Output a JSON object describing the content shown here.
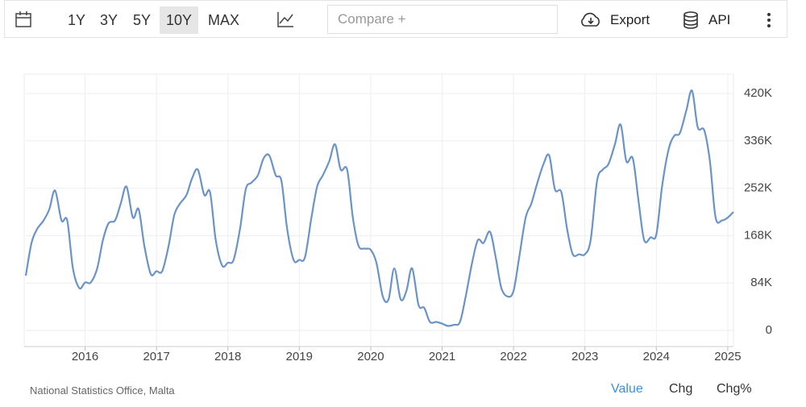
{
  "toolbar": {
    "ranges": [
      "1Y",
      "3Y",
      "5Y",
      "10Y",
      "MAX"
    ],
    "compare": "Compare +",
    "export": "Export",
    "api": "API"
  },
  "chart_data": {
    "type": "line",
    "x": [
      2015.17,
      2015.25,
      2015.33,
      2015.42,
      2015.5,
      2015.58,
      2015.67,
      2015.75,
      2015.83,
      2015.92,
      2016.0,
      2016.08,
      2016.17,
      2016.25,
      2016.33,
      2016.42,
      2016.5,
      2016.58,
      2016.67,
      2016.75,
      2016.83,
      2016.92,
      2017.0,
      2017.08,
      2017.17,
      2017.25,
      2017.33,
      2017.42,
      2017.5,
      2017.58,
      2017.67,
      2017.75,
      2017.83,
      2017.92,
      2018.0,
      2018.08,
      2018.17,
      2018.25,
      2018.33,
      2018.42,
      2018.5,
      2018.58,
      2018.67,
      2018.75,
      2018.83,
      2018.92,
      2019.0,
      2019.08,
      2019.17,
      2019.25,
      2019.33,
      2019.42,
      2019.5,
      2019.58,
      2019.67,
      2019.75,
      2019.83,
      2019.92,
      2020.0,
      2020.08,
      2020.17,
      2020.25,
      2020.33,
      2020.42,
      2020.5,
      2020.58,
      2020.67,
      2020.75,
      2020.83,
      2020.92,
      2021.0,
      2021.08,
      2021.17,
      2021.25,
      2021.33,
      2021.42,
      2021.5,
      2021.58,
      2021.67,
      2021.75,
      2021.83,
      2021.92,
      2022.0,
      2022.08,
      2022.17,
      2022.25,
      2022.33,
      2022.42,
      2022.5,
      2022.58,
      2022.67,
      2022.75,
      2022.83,
      2022.92,
      2023.0,
      2023.08,
      2023.17,
      2023.25,
      2023.33,
      2023.42,
      2023.5,
      2023.58,
      2023.67,
      2023.75,
      2023.83,
      2023.92,
      2024.0,
      2024.08,
      2024.17,
      2024.25,
      2024.33,
      2024.42,
      2024.5,
      2024.58,
      2024.67,
      2024.75,
      2024.83,
      2024.92,
      2025.0,
      2025.08
    ],
    "series": [
      {
        "color": "#6a93c8",
        "values": [
          97000,
          155000,
          180000,
          195000,
          215000,
          248000,
          195000,
          195000,
          110000,
          75000,
          85000,
          85000,
          110000,
          160000,
          190000,
          195000,
          225000,
          255000,
          200000,
          215000,
          150000,
          100000,
          105000,
          105000,
          150000,
          205000,
          225000,
          240000,
          270000,
          285000,
          240000,
          245000,
          160000,
          115000,
          120000,
          125000,
          180000,
          250000,
          262000,
          275000,
          305000,
          310000,
          275000,
          265000,
          180000,
          125000,
          125000,
          130000,
          200000,
          255000,
          275000,
          300000,
          330000,
          285000,
          285000,
          200000,
          150000,
          145000,
          143000,
          120000,
          60000,
          55000,
          110000,
          55000,
          70000,
          110000,
          45000,
          40000,
          15000,
          15000,
          12000,
          8000,
          10000,
          15000,
          60000,
          120000,
          160000,
          155000,
          175000,
          130000,
          75000,
          60000,
          70000,
          130000,
          200000,
          225000,
          260000,
          295000,
          310000,
          250000,
          245000,
          180000,
          135000,
          135000,
          135000,
          160000,
          265000,
          285000,
          295000,
          330000,
          365000,
          300000,
          305000,
          230000,
          160000,
          165000,
          170000,
          255000,
          320000,
          345000,
          350000,
          390000,
          425000,
          360000,
          355000,
          300000,
          200000,
          195000,
          200000,
          210000
        ]
      }
    ],
    "xlim": [
      2015.17,
      2025.08
    ],
    "xticks": [
      2016,
      2017,
      2018,
      2019,
      2020,
      2021,
      2022,
      2023,
      2024,
      2025
    ],
    "ylim": [
      -28600,
      454300
    ],
    "yticks": [
      0,
      {
        "value": 84000,
        "label": "84K"
      },
      {
        "value": 168000,
        "label": "168K"
      },
      {
        "value": 252000,
        "label": "252K"
      },
      {
        "value": 336000,
        "label": "336K"
      },
      {
        "value": 420000,
        "label": "420K"
      }
    ],
    "grid": true
  },
  "footer": {
    "source": "National Statistics Office, Malta",
    "tabs": [
      "Value",
      "Chg",
      "Chg%"
    ]
  }
}
